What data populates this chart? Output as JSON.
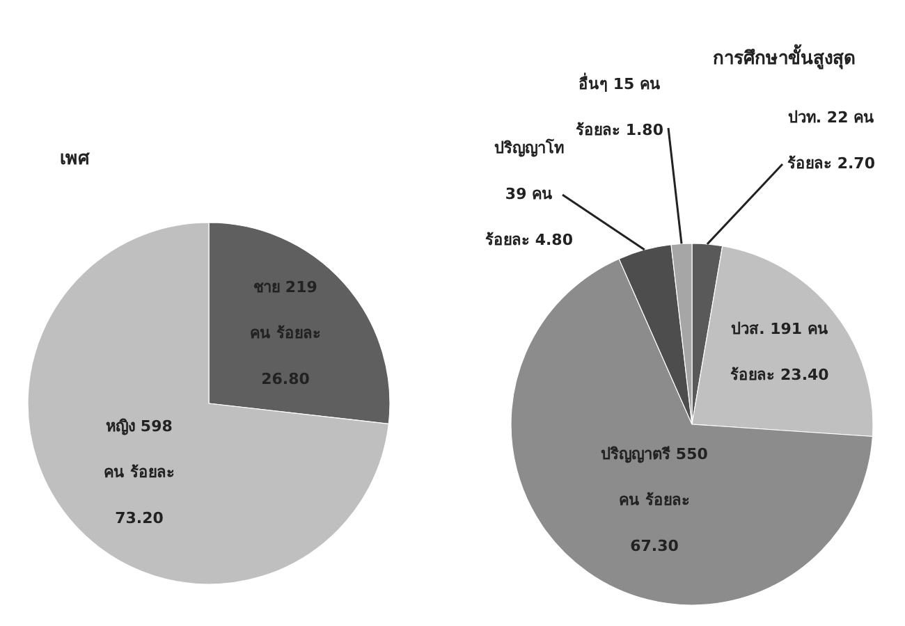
{
  "chart_data": [
    {
      "type": "pie",
      "title": "เพศ",
      "categories": [
        "ชาย 219 คน ร้อยละ 26.80",
        "หญิง 598 คน ร้อยละ 73.20"
      ],
      "values": [
        219,
        598
      ],
      "colors": [
        "#5f5f5f",
        "#bfbfbf"
      ]
    },
    {
      "type": "pie",
      "title": "การศึกษาขั้นสูงสุด",
      "categories": [
        "ปวท. 22 คน ร้อยละ 2.70",
        "ปวส. 191 คน ร้อยละ 23.40",
        "ปริญญาตรี 550 คน ร้อยละ 67.30",
        "ปริญญาโท 39 คน ร้อยละ 4.80",
        "อื่นๆ 15 คน ร้อยละ 1.80"
      ],
      "values": [
        22,
        191,
        550,
        39,
        15
      ],
      "colors": [
        "#595959",
        "#c0c0c0",
        "#8c8c8c",
        "#4d4d4d",
        "#a6a6a6"
      ]
    }
  ]
}
